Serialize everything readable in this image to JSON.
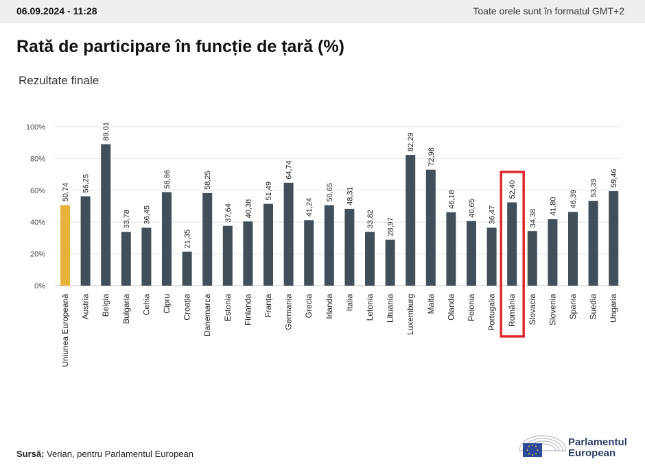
{
  "header": {
    "datetime": "06.09.2024 - 11:28",
    "timezone_note": "Toate orele sunt în formatul GMT+2"
  },
  "title": "Rată de participare în funcție de țară (%)",
  "subtitle": "Rezultate finale",
  "source": {
    "label": "Sursă:",
    "text": " Verian, pentru Parlamentul European"
  },
  "logo": {
    "line1": "Parlamentul",
    "line2": "European"
  },
  "colors": {
    "bar_default": "#414f5a",
    "bar_eu": "#e8b23a",
    "highlight_box": "#e0262b",
    "grid": "#e2e2e2"
  },
  "chart_data": {
    "type": "bar",
    "title": "Rată de participare în funcție de țară (%)",
    "subtitle": "Rezultate finale",
    "xlabel": "",
    "ylabel": "",
    "ylim": [
      0,
      100
    ],
    "yticks": [
      0,
      20,
      40,
      60,
      80,
      100
    ],
    "ytick_labels": [
      "0%",
      "20%",
      "40%",
      "60%",
      "80%",
      "100%"
    ],
    "grid": true,
    "categories": [
      "Uniunea Europeană",
      "Austria",
      "Belgia",
      "Bulgaria",
      "Cehia",
      "Cipru",
      "Croația",
      "Danemarca",
      "Estonia",
      "Finlanda",
      "Franța",
      "Germania",
      "Grecia",
      "Irlanda",
      "Italia",
      "Letonia",
      "Lituania",
      "Luxemburg",
      "Malta",
      "Olanda",
      "Polonia",
      "Portugalia",
      "România",
      "Slovacia",
      "Slovenia",
      "Spania",
      "Suedia",
      "Ungaria"
    ],
    "values": [
      50.74,
      56.25,
      89.01,
      33.78,
      36.45,
      58.86,
      21.35,
      58.25,
      37.64,
      40.38,
      51.49,
      64.74,
      41.24,
      50.65,
      48.31,
      33.82,
      28.97,
      82.29,
      72.98,
      46.18,
      40.65,
      36.47,
      52.4,
      34.38,
      41.8,
      46.39,
      53.39,
      59.46
    ],
    "value_labels": [
      "50,74",
      "56,25",
      "89,01",
      "33,78",
      "36,45",
      "58,86",
      "21,35",
      "58,25",
      "37,64",
      "40,38",
      "51,49",
      "64,74",
      "41,24",
      "50,65",
      "48,31",
      "33,82",
      "28,97",
      "82,29",
      "72,98",
      "46,18",
      "40,65",
      "36,47",
      "52,40",
      "34,38",
      "41,80",
      "46,39",
      "53,39",
      "59,46"
    ],
    "highlight_category": "România",
    "accent_category": "Uniunea Europeană"
  }
}
